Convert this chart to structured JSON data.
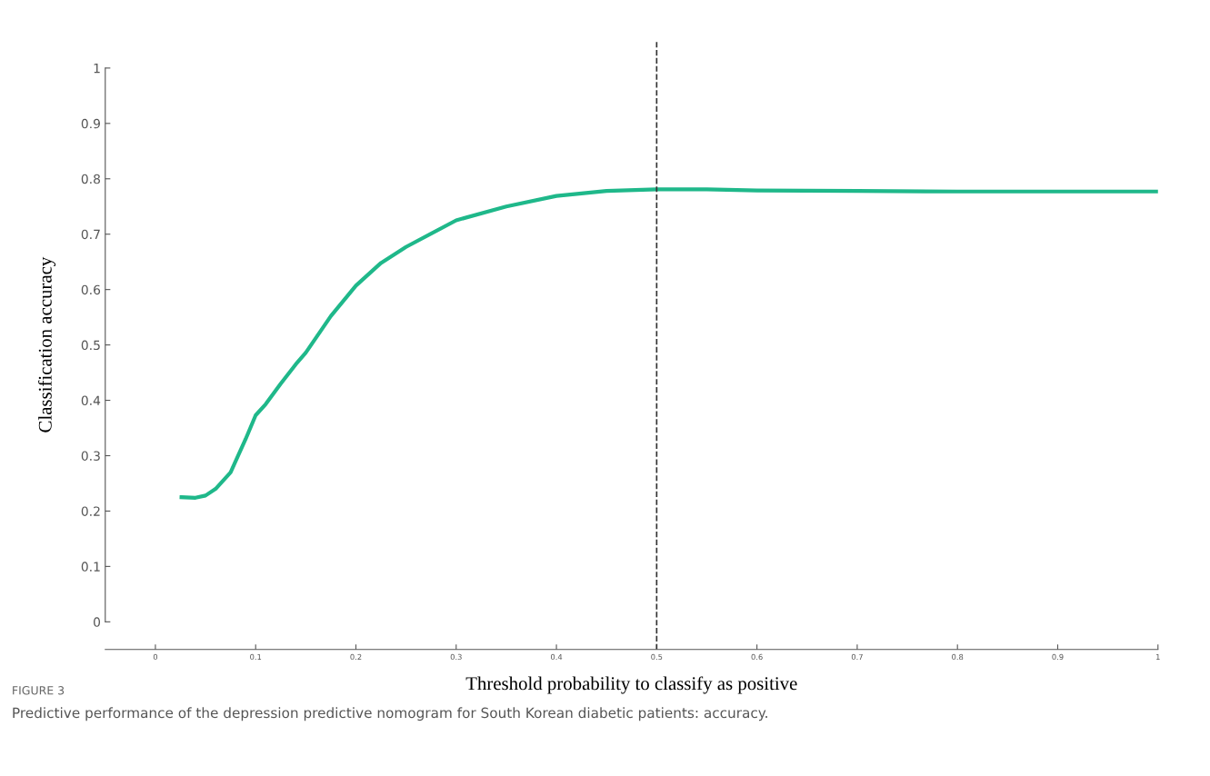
{
  "chart_data": {
    "type": "line",
    "xlabel": "Threshold probability to classify as positive",
    "ylabel": "Classification accuracy",
    "x": [
      0.026,
      0.04,
      0.05,
      0.06,
      0.075,
      0.09,
      0.1,
      0.11,
      0.125,
      0.14,
      0.15,
      0.175,
      0.2,
      0.225,
      0.25,
      0.3,
      0.35,
      0.4,
      0.45,
      0.5,
      0.55,
      0.6,
      0.7,
      0.8,
      0.9,
      1.0
    ],
    "series": [
      {
        "color": "#1fb88a",
        "values": [
          0.225,
          0.224,
          0.228,
          0.24,
          0.27,
          0.33,
          0.373,
          0.393,
          0.43,
          0.465,
          0.486,
          0.552,
          0.607,
          0.648,
          0.677,
          0.725,
          0.75,
          0.769,
          0.778,
          0.781,
          0.781,
          0.779,
          0.778,
          0.777,
          0.777,
          0.777
        ]
      }
    ],
    "xlim": [
      -0.05,
      1.0
    ],
    "ylim": [
      -0.05,
      1.05
    ],
    "xticks": [
      0,
      0.1,
      0.2,
      0.3,
      0.4,
      0.5,
      0.6,
      0.7,
      0.8,
      0.9,
      1
    ],
    "yticks": [
      0,
      0.1,
      0.2,
      0.3,
      0.4,
      0.5,
      0.6,
      0.7,
      0.8,
      0.9,
      1
    ],
    "ref_lines": [
      {
        "axis": "x",
        "value": 0.5,
        "color": "#333333",
        "line_style": "dashed"
      }
    ],
    "grid": false,
    "legend": false,
    "marker": "none",
    "line_style": "solid",
    "annotations": [
      "FIGURE 3",
      "Predictive performance of the depression predictive nomogram for South Korean diabetic patients: accuracy."
    ]
  }
}
